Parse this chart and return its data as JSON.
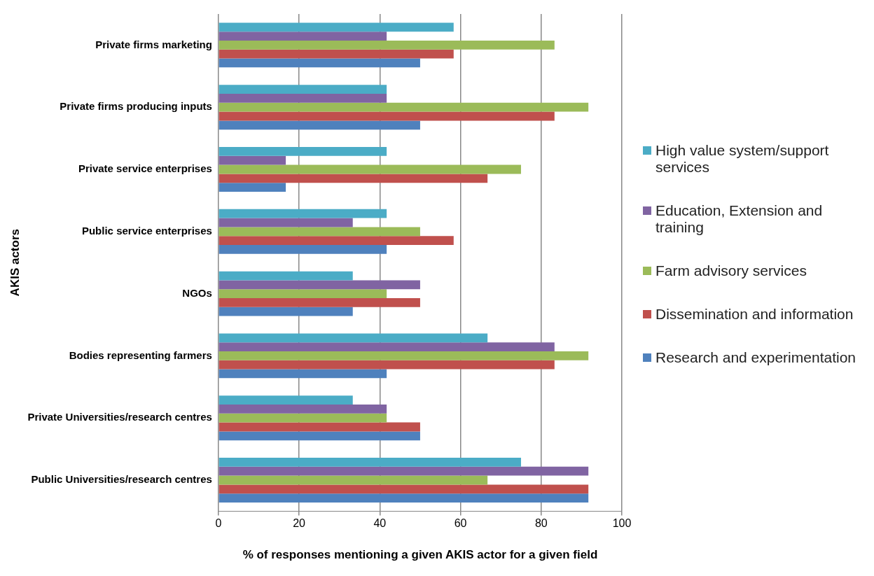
{
  "chart_data": {
    "type": "bar",
    "orientation": "horizontal",
    "xlabel": "% of responses mentioning a given AKIS actor for a given field",
    "ylabel": "AKIS actors",
    "categories": [
      "Private firms marketing",
      "Private firms producing inputs",
      "Private service enterprises",
      "Public service enterprises",
      "NGOs",
      "Bodies representing farmers",
      "Private Universities/research centres",
      "Public Universities/research centres"
    ],
    "series": [
      {
        "name": "High value system/support services",
        "color": "#4bacc6",
        "values": [
          58.3,
          41.7,
          41.7,
          41.7,
          33.3,
          66.7,
          33.3,
          75
        ]
      },
      {
        "name": "Education, Extension and training",
        "color": "#8064a2",
        "values": [
          41.7,
          41.7,
          16.7,
          33.3,
          50,
          83.3,
          41.7,
          91.7
        ]
      },
      {
        "name": "Farm advisory services",
        "color": "#9bbb59",
        "values": [
          83.3,
          91.7,
          75,
          50,
          41.7,
          91.7,
          41.7,
          66.7
        ]
      },
      {
        "name": "Dissemination and information",
        "color": "#c0504d",
        "values": [
          58.3,
          83.3,
          66.7,
          58.3,
          50,
          83.3,
          50,
          91.7
        ]
      },
      {
        "name": "Research and experimentation",
        "color": "#4f81bd",
        "values": [
          50,
          50,
          16.7,
          41.7,
          33.3,
          41.7,
          50,
          91.7
        ]
      }
    ],
    "xlim": [
      0,
      100
    ],
    "xticks": [
      0,
      20,
      40,
      60,
      80,
      100
    ],
    "grid": "x",
    "legend": "right"
  }
}
